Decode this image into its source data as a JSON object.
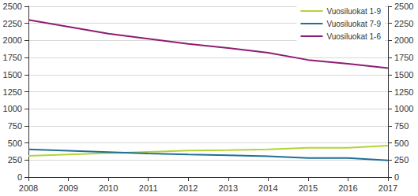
{
  "chart_data": {
    "type": "line",
    "x": [
      2008,
      2009,
      2010,
      2011,
      2012,
      2013,
      2014,
      2015,
      2016,
      2017
    ],
    "xlim": [
      2008,
      2017
    ],
    "xticks": [
      2008,
      2009,
      2010,
      2011,
      2012,
      2013,
      2014,
      2015,
      2016,
      2017
    ],
    "ylim": [
      0,
      2500
    ],
    "yticks": [
      0,
      250,
      500,
      750,
      1000,
      1250,
      1500,
      1750,
      2000,
      2250,
      2500
    ],
    "y2lim": [
      0,
      2500
    ],
    "y2ticks": [
      0,
      250,
      500,
      750,
      1000,
      1250,
      1500,
      1750,
      2000,
      2250,
      2500
    ],
    "grid": true,
    "legend": "upper right",
    "marker": "none",
    "series": [
      {
        "name": "Vuosiluokat 1-9",
        "color": "#b5d334",
        "values": [
          310,
          330,
          350,
          370,
          390,
          395,
          405,
          430,
          430,
          460
        ]
      },
      {
        "name": "Vuosiluokat 7-9",
        "color": "#1f6f94",
        "values": [
          405,
          385,
          365,
          345,
          330,
          320,
          305,
          280,
          280,
          245
        ]
      },
      {
        "name": "Vuosiluokat 1-6",
        "color": "#8e1c74",
        "values": [
          2300,
          2200,
          2100,
          2025,
          1950,
          1890,
          1820,
          1715,
          1660,
          1595
        ]
      }
    ]
  }
}
